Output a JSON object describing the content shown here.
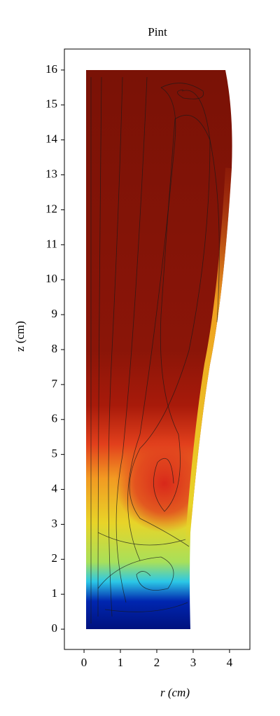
{
  "chart_data": {
    "type": "streamline",
    "title": "Pint",
    "xlabel": "r (cm)",
    "ylabel": "z (cm)",
    "xlim": [
      -0.54,
      4.56
    ],
    "ylim": [
      -0.58,
      16.6
    ],
    "xticks": [
      0,
      1,
      2,
      3,
      4
    ],
    "yticks": [
      0,
      1,
      2,
      3,
      4,
      5,
      6,
      7,
      8,
      9,
      10,
      11,
      12,
      13,
      14,
      15,
      16
    ]
  }
}
